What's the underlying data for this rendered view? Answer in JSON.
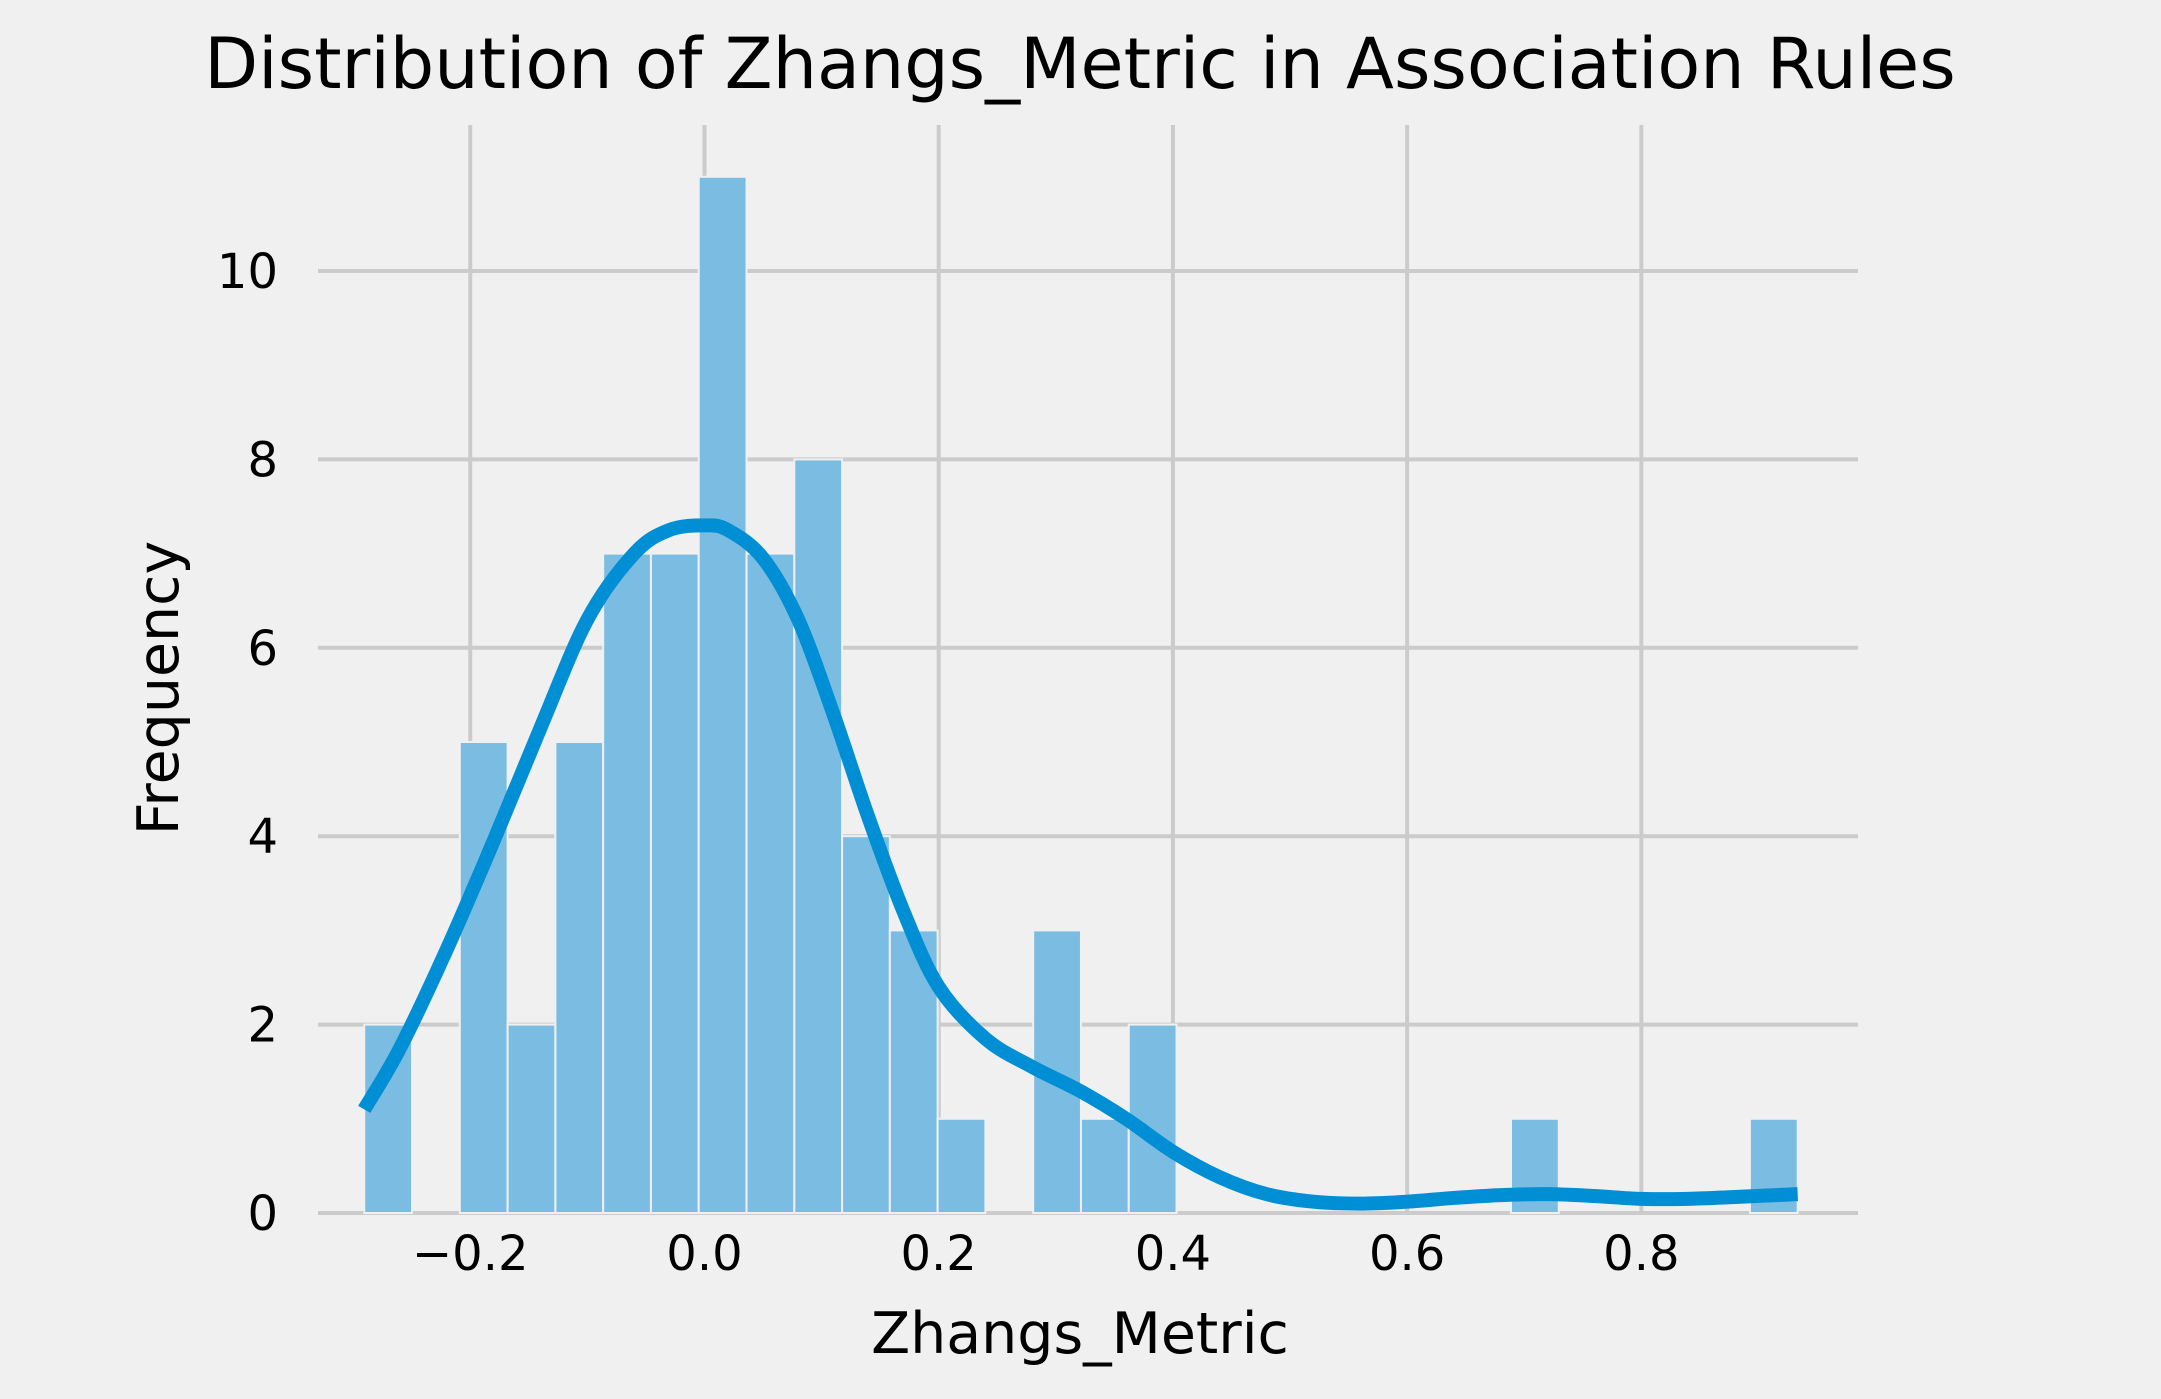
{
  "chart_data": {
    "type": "bar",
    "title": "Distribution of Zhangs_Metric in Association Rules",
    "xlabel": "Zhangs_Metric",
    "ylabel": "Frequency",
    "xlim": [
      -0.33,
      0.985
    ],
    "ylim": [
      0,
      11.55
    ],
    "xticks": [
      -0.2,
      0.0,
      0.2,
      0.4,
      0.6,
      0.8
    ],
    "xtick_labels": [
      "−0.2",
      "0.0",
      "0.2",
      "0.4",
      "0.6",
      "0.8"
    ],
    "yticks": [
      0,
      2,
      4,
      6,
      8,
      10
    ],
    "ytick_labels": [
      "0",
      "2",
      "4",
      "6",
      "8",
      "10"
    ],
    "grid": true,
    "bin_start": -0.2905,
    "bin_width": 0.0408,
    "bins": [
      {
        "x0": -0.2905,
        "x1": -0.2497,
        "count": 2
      },
      {
        "x0": -0.2497,
        "x1": -0.2089,
        "count": 0
      },
      {
        "x0": -0.2089,
        "x1": -0.1681,
        "count": 5
      },
      {
        "x0": -0.1681,
        "x1": -0.1273,
        "count": 2
      },
      {
        "x0": -0.1273,
        "x1": -0.0865,
        "count": 5
      },
      {
        "x0": -0.0865,
        "x1": -0.0457,
        "count": 7
      },
      {
        "x0": -0.0457,
        "x1": -0.0049,
        "count": 7
      },
      {
        "x0": -0.0049,
        "x1": 0.0359,
        "count": 11
      },
      {
        "x0": 0.0359,
        "x1": 0.0767,
        "count": 7
      },
      {
        "x0": 0.0767,
        "x1": 0.1175,
        "count": 8
      },
      {
        "x0": 0.1175,
        "x1": 0.1583,
        "count": 4
      },
      {
        "x0": 0.1583,
        "x1": 0.1991,
        "count": 3
      },
      {
        "x0": 0.1991,
        "x1": 0.2399,
        "count": 1
      },
      {
        "x0": 0.2399,
        "x1": 0.2807,
        "count": 0
      },
      {
        "x0": 0.2807,
        "x1": 0.3215,
        "count": 3
      },
      {
        "x0": 0.3215,
        "x1": 0.3623,
        "count": 1
      },
      {
        "x0": 0.3623,
        "x1": 0.4031,
        "count": 2
      },
      {
        "x0": 0.4031,
        "x1": 0.4439,
        "count": 0
      },
      {
        "x0": 0.4439,
        "x1": 0.4847,
        "count": 0
      },
      {
        "x0": 0.4847,
        "x1": 0.5255,
        "count": 0
      },
      {
        "x0": 0.5255,
        "x1": 0.5663,
        "count": 0
      },
      {
        "x0": 0.5663,
        "x1": 0.6071,
        "count": 0
      },
      {
        "x0": 0.6071,
        "x1": 0.6479,
        "count": 0
      },
      {
        "x0": 0.6479,
        "x1": 0.6887,
        "count": 0
      },
      {
        "x0": 0.6887,
        "x1": 0.7295,
        "count": 1
      },
      {
        "x0": 0.7295,
        "x1": 0.7703,
        "count": 0
      },
      {
        "x0": 0.7703,
        "x1": 0.8111,
        "count": 0
      },
      {
        "x0": 0.8111,
        "x1": 0.8519,
        "count": 0
      },
      {
        "x0": 0.8519,
        "x1": 0.8927,
        "count": 0
      },
      {
        "x0": 0.8927,
        "x1": 0.9335,
        "count": 1
      }
    ],
    "kde": {
      "x": [
        -0.2905,
        -0.26,
        -0.22,
        -0.18,
        -0.14,
        -0.1,
        -0.06,
        -0.03,
        0.0,
        0.02,
        0.05,
        0.08,
        0.11,
        0.14,
        0.17,
        0.2,
        0.24,
        0.28,
        0.32,
        0.36,
        0.4,
        0.44,
        0.48,
        0.52,
        0.56,
        0.6,
        0.64,
        0.68,
        0.72,
        0.76,
        0.8,
        0.84,
        0.88,
        0.9335
      ],
      "y": [
        1.1,
        1.75,
        2.8,
        3.95,
        5.15,
        6.3,
        7.0,
        7.25,
        7.3,
        7.25,
        6.95,
        6.3,
        5.3,
        4.2,
        3.2,
        2.4,
        1.85,
        1.55,
        1.3,
        1.0,
        0.65,
        0.38,
        0.2,
        0.12,
        0.1,
        0.12,
        0.16,
        0.19,
        0.2,
        0.18,
        0.15,
        0.15,
        0.17,
        0.2
      ]
    },
    "colors": {
      "background": "#f0f0f0",
      "bar": "#7bbde2",
      "kde": "#008fd5",
      "grid": "#cbcbcb"
    }
  }
}
